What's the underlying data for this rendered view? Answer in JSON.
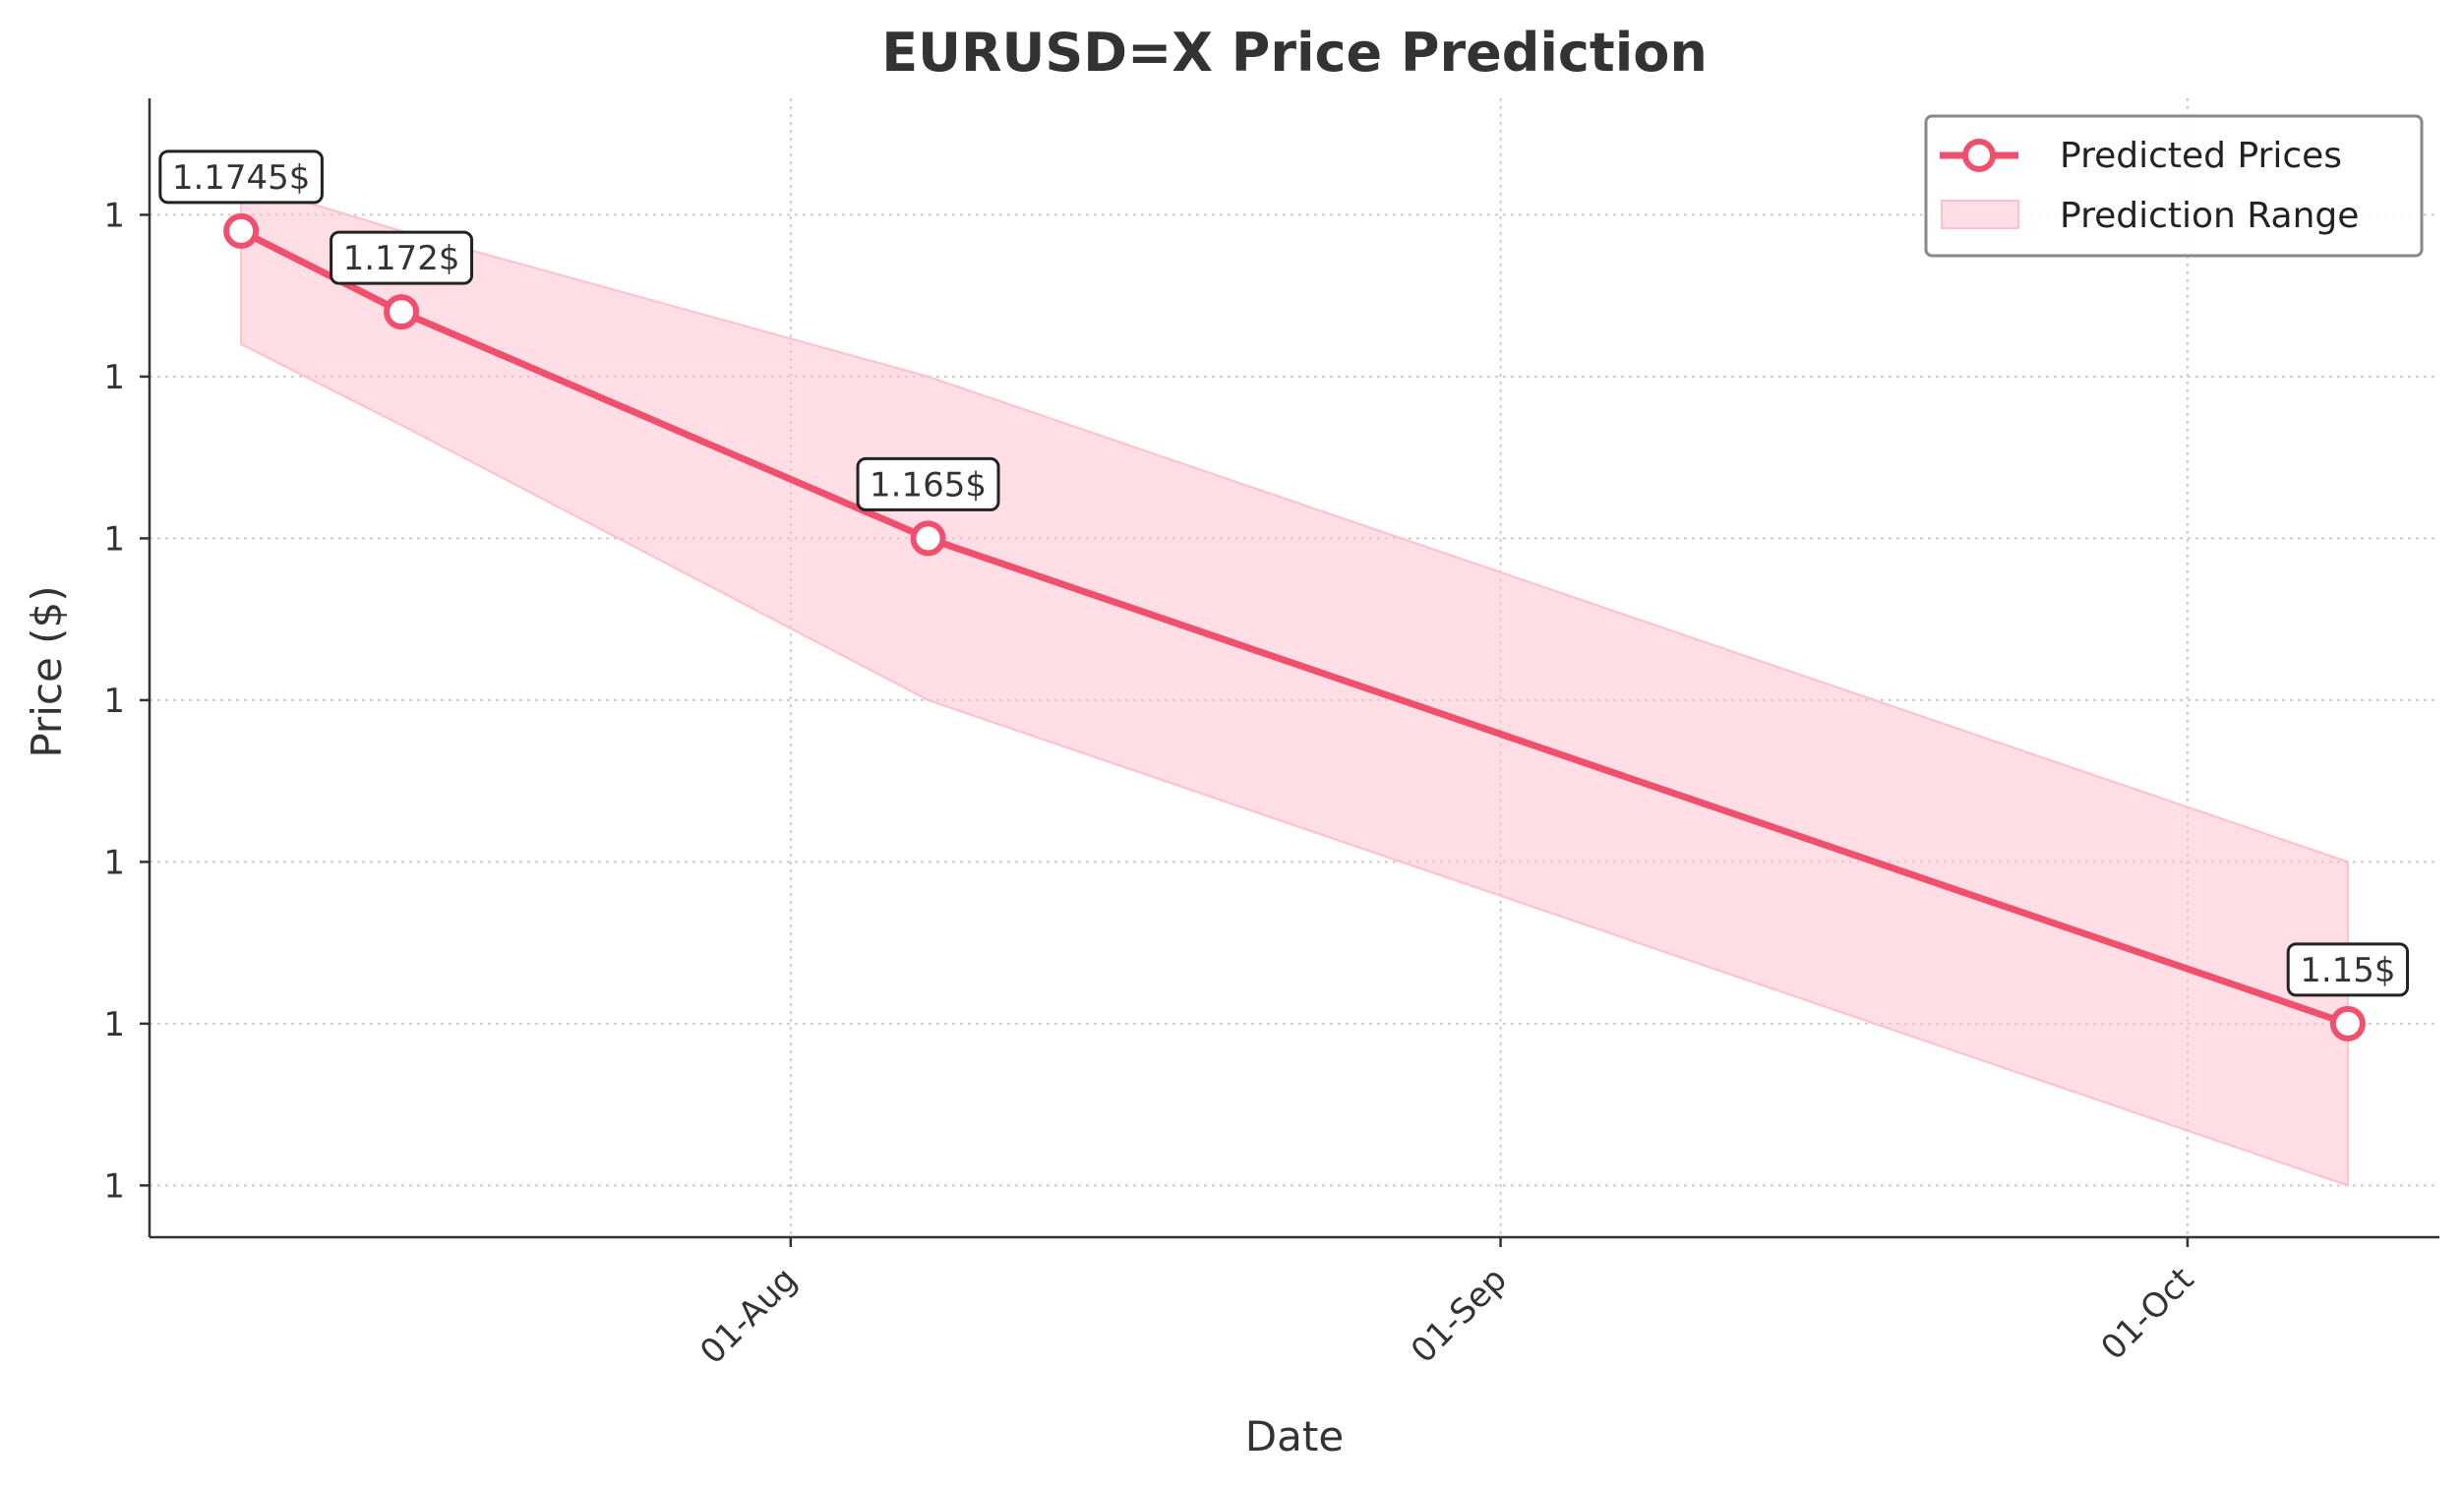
{
  "chart_data": {
    "type": "line",
    "title": "EURUSD=X Price Prediction",
    "xlabel": "Date",
    "ylabel": "Price ($)",
    "x_ticks": [
      {
        "date": "2025-08-01",
        "label": "01-Aug"
      },
      {
        "date": "2025-09-01",
        "label": "01-Sep"
      },
      {
        "date": "2025-10-01",
        "label": "01-Oct"
      }
    ],
    "y_ticks": [
      1.175,
      1.17,
      1.165,
      1.16,
      1.155,
      1.15,
      1.145
    ],
    "y_tick_labels": [
      "1",
      "1",
      "1",
      "1",
      "1",
      "1",
      "1"
    ],
    "xlim": [
      "2025-07-04",
      "2025-10-12"
    ],
    "ylim": [
      1.1434,
      1.1786
    ],
    "grid": true,
    "legend_position": "top-right",
    "series": [
      {
        "name": "Predicted Prices",
        "color": "#f0506e",
        "x": [
          "2025-07-08",
          "2025-07-15",
          "2025-08-07",
          "2025-10-08"
        ],
        "y": [
          1.1745,
          1.172,
          1.165,
          1.15
        ]
      }
    ],
    "range": {
      "name": "Prediction Range",
      "color": "#ffc0cb",
      "x": [
        "2025-07-08",
        "2025-07-15",
        "2025-08-07",
        "2025-10-08"
      ],
      "lower": [
        1.171,
        1.1685,
        1.16,
        1.145
      ],
      "upper": [
        1.176,
        1.1745,
        1.17,
        1.155
      ]
    },
    "annotations": [
      {
        "x": "2025-07-08",
        "y": 1.1745,
        "text": "1.1745$"
      },
      {
        "x": "2025-07-15",
        "y": 1.172,
        "text": "1.172$"
      },
      {
        "x": "2025-08-07",
        "y": 1.165,
        "text": "1.165$"
      },
      {
        "x": "2025-10-08",
        "y": 1.15,
        "text": "1.15$"
      }
    ]
  }
}
